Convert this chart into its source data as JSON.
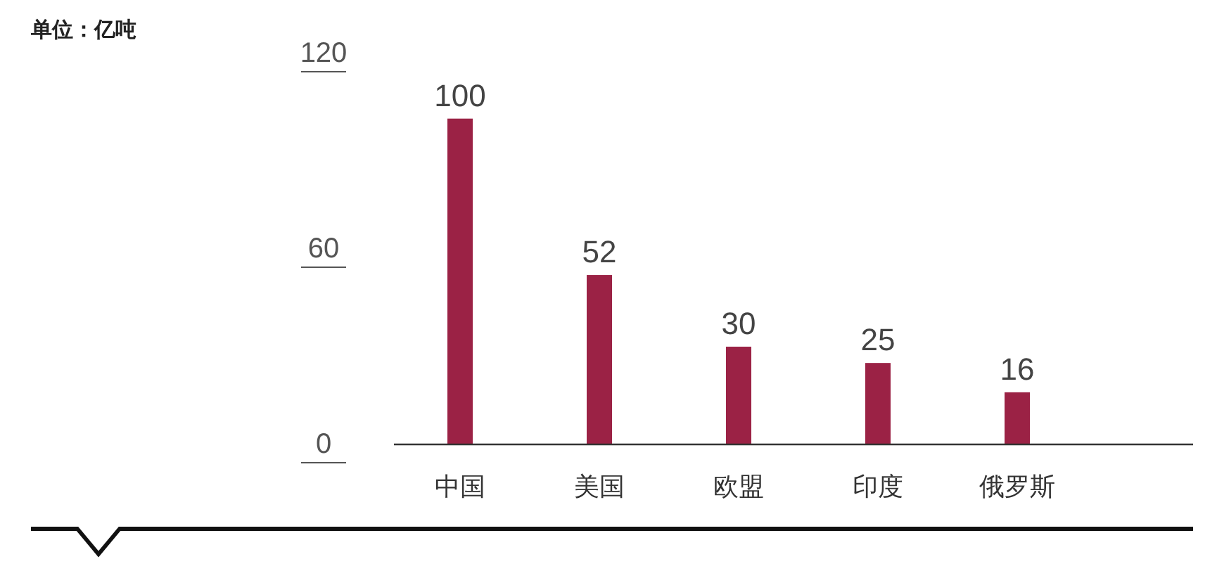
{
  "chart_data": {
    "type": "bar",
    "title": "单位：亿吨",
    "categories": [
      "中国",
      "美国",
      "欧盟",
      "印度",
      "俄罗斯"
    ],
    "values": [
      100,
      52,
      30,
      25,
      16
    ],
    "color": "#9b2245",
    "ylim": [
      0,
      120
    ],
    "yticks": [
      0,
      60,
      120
    ],
    "data_labels": true,
    "grid": false
  }
}
